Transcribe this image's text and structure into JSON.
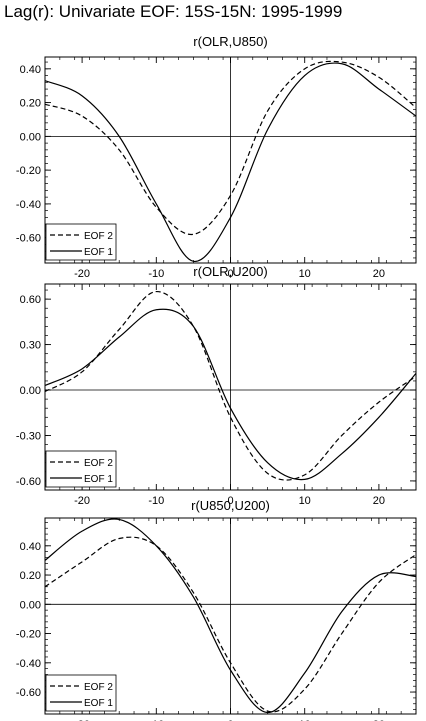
{
  "page": {
    "title": "Lag(r): Univariate EOF: 15S-15N: 1995-1999"
  },
  "chart_data": [
    {
      "type": "line",
      "title": "r(OLR,U850)",
      "xlabel": "",
      "ylabel": "",
      "xlim": [
        -25,
        25
      ],
      "ylim": [
        -0.75,
        0.47
      ],
      "x_ticks": [
        -20,
        -10,
        0,
        10,
        20
      ],
      "x_tick_labels": [
        "-20",
        "-10",
        "0",
        "10",
        "20"
      ],
      "y_ticks": [
        0.4,
        0.2,
        0.0,
        -0.2,
        -0.4,
        -0.6
      ],
      "y_tick_labels": [
        "0.40",
        "0.20",
        "0.00",
        "-0.20",
        "-0.40",
        "-0.60"
      ],
      "grid": false,
      "reference_lines": [
        "x=0",
        "y=0"
      ],
      "legend": {
        "position": "bottom-left",
        "entries": [
          "EOF 2",
          "EOF 1"
        ]
      },
      "series": [
        {
          "name": "EOF 2",
          "style": "dashed",
          "x": [
            -25,
            -20,
            -15,
            -10,
            -5,
            0,
            5,
            10,
            15,
            20,
            25
          ],
          "y": [
            0.19,
            0.12,
            -0.08,
            -0.42,
            -0.58,
            -0.35,
            0.15,
            0.4,
            0.44,
            0.35,
            0.17
          ]
        },
        {
          "name": "EOF 1",
          "style": "solid",
          "x": [
            -25,
            -20,
            -15,
            -10,
            -5,
            0,
            5,
            10,
            15,
            20,
            25
          ],
          "y": [
            0.33,
            0.24,
            0.0,
            -0.4,
            -0.74,
            -0.48,
            0.04,
            0.36,
            0.43,
            0.28,
            0.12
          ]
        }
      ]
    },
    {
      "type": "line",
      "title": "r(OLR,U200)",
      "xlabel": "",
      "ylabel": "",
      "xlim": [
        -25,
        25
      ],
      "ylim": [
        -0.66,
        0.7
      ],
      "x_ticks": [
        -20,
        -10,
        0,
        10,
        20
      ],
      "x_tick_labels": [
        "-20",
        "-10",
        "0",
        "10",
        "20"
      ],
      "y_ticks": [
        0.6,
        0.3,
        0.0,
        -0.3,
        -0.6
      ],
      "y_tick_labels": [
        "0.60",
        "0.30",
        "0.00",
        "-0.30",
        "-0.60"
      ],
      "grid": false,
      "reference_lines": [
        "x=0",
        "y=0"
      ],
      "legend": {
        "position": "bottom-left",
        "entries": [
          "EOF 2",
          "EOF 1"
        ]
      },
      "series": [
        {
          "name": "EOF 2",
          "style": "dashed",
          "x": [
            -25,
            -20,
            -15,
            -10,
            -5,
            0,
            5,
            10,
            15,
            20,
            25
          ],
          "y": [
            -0.01,
            0.12,
            0.4,
            0.65,
            0.42,
            -0.18,
            -0.55,
            -0.56,
            -0.3,
            -0.08,
            0.09
          ]
        },
        {
          "name": "EOF 1",
          "style": "solid",
          "x": [
            -25,
            -20,
            -15,
            -10,
            -5,
            0,
            5,
            10,
            15,
            20,
            25
          ],
          "y": [
            0.03,
            0.14,
            0.35,
            0.53,
            0.42,
            -0.12,
            -0.48,
            -0.59,
            -0.42,
            -0.18,
            0.11
          ]
        }
      ]
    },
    {
      "type": "line",
      "title": "r(U850,U200)",
      "xlabel": "",
      "ylabel": "",
      "xlim": [
        -25,
        25
      ],
      "ylim": [
        -0.75,
        0.59
      ],
      "x_ticks": [
        -20,
        -10,
        0,
        10,
        20
      ],
      "x_tick_labels": [
        "-20",
        "-10",
        "0",
        "10",
        "20"
      ],
      "y_ticks": [
        0.4,
        0.2,
        0.0,
        -0.2,
        -0.4,
        -0.6
      ],
      "y_tick_labels": [
        "0.40",
        "0.20",
        "0.00",
        "-0.20",
        "-0.40",
        "-0.60"
      ],
      "grid": false,
      "reference_lines": [
        "x=0",
        "y=0"
      ],
      "legend": {
        "position": "bottom-left",
        "entries": [
          "EOF 2",
          "EOF 1"
        ]
      },
      "series": [
        {
          "name": "EOF 2",
          "style": "dashed",
          "x": [
            -25,
            -20,
            -15,
            -10,
            -5,
            0,
            5,
            10,
            15,
            20,
            25
          ],
          "y": [
            0.12,
            0.29,
            0.45,
            0.4,
            0.08,
            -0.4,
            -0.73,
            -0.58,
            -0.2,
            0.15,
            0.34
          ]
        },
        {
          "name": "EOF 1",
          "style": "solid",
          "x": [
            -25,
            -20,
            -15,
            -10,
            -5,
            0,
            5,
            10,
            15,
            20,
            25
          ],
          "y": [
            0.3,
            0.5,
            0.58,
            0.4,
            0.05,
            -0.45,
            -0.74,
            -0.47,
            -0.05,
            0.2,
            0.19
          ]
        }
      ]
    }
  ]
}
